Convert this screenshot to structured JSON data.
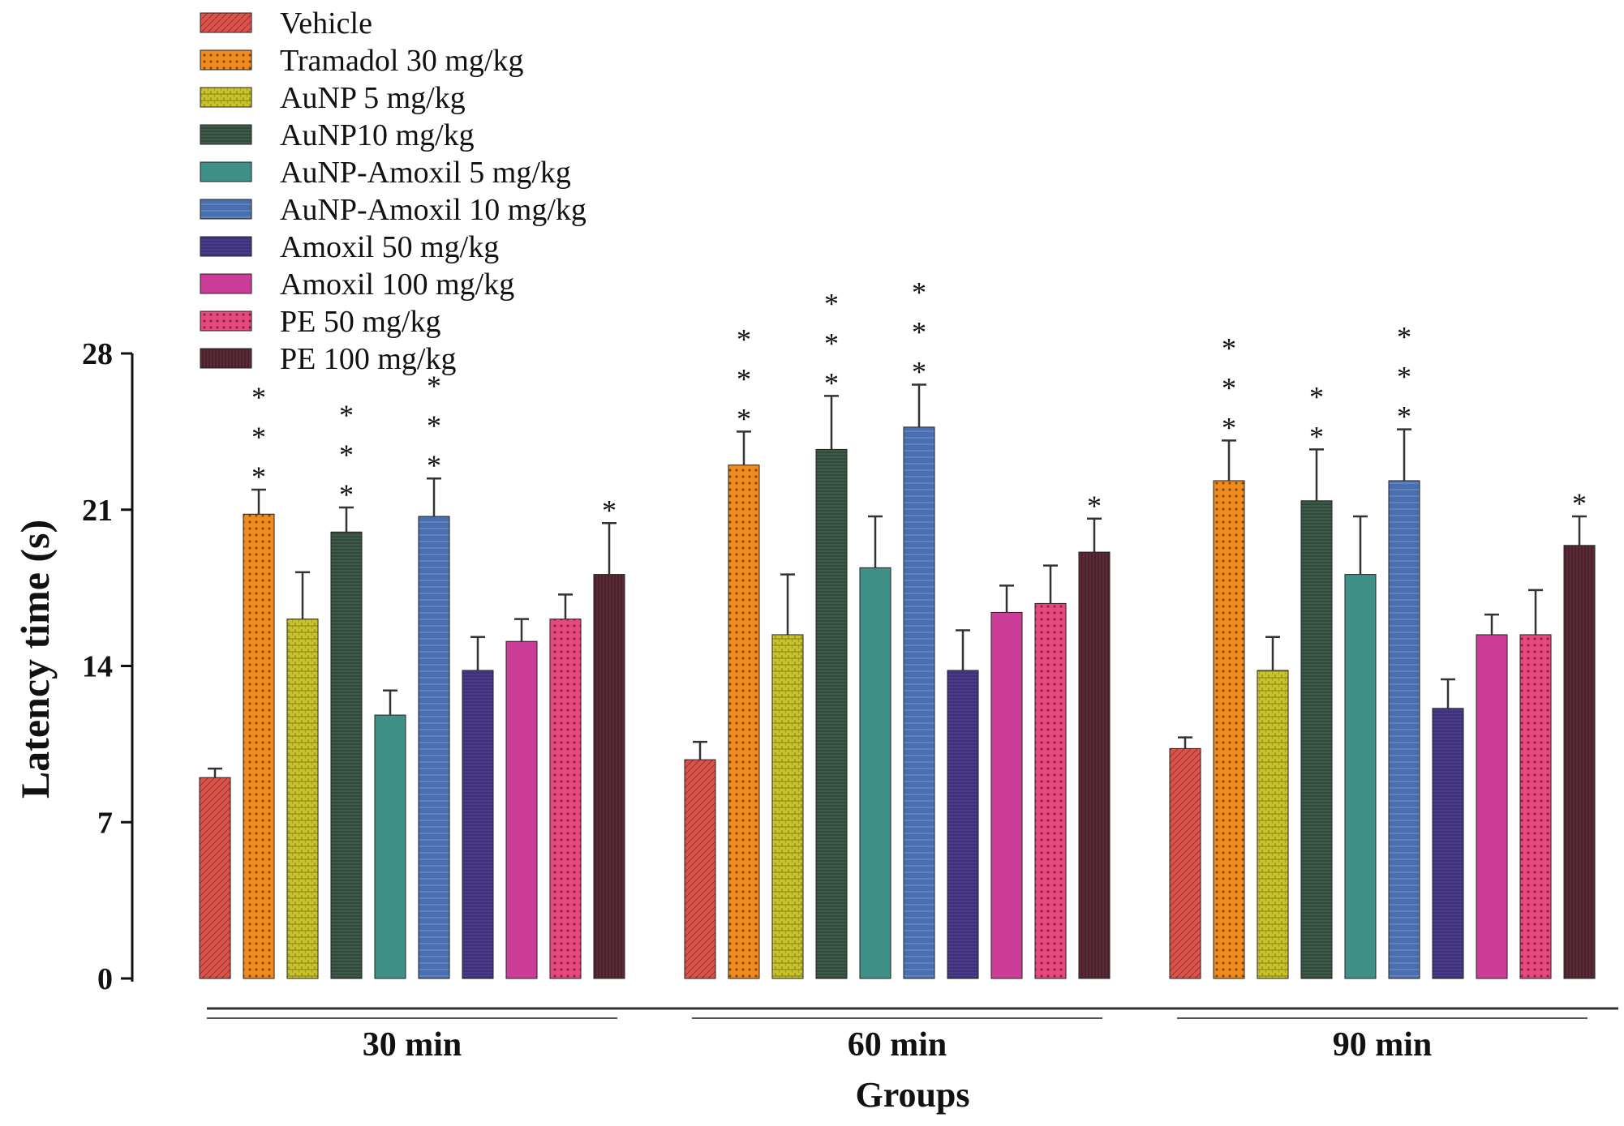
{
  "chart_data": {
    "type": "bar",
    "xlabel": "Groups",
    "ylabel": "Latency time (s)",
    "ylim": [
      0,
      28
    ],
    "yticks": [
      0,
      7,
      14,
      21,
      28
    ],
    "legend_position": "top-left",
    "grid": false,
    "significance_marker": "*",
    "categories": [
      "30 min",
      "60 min",
      "90 min"
    ],
    "series": [
      {
        "name": "Vehicle",
        "color": "#d9534a",
        "values": [
          9.0,
          9.8,
          10.3
        ],
        "errors": [
          0.4,
          0.8,
          0.5
        ],
        "stars": [
          0,
          0,
          0
        ]
      },
      {
        "name": "Tramadol 30 mg/kg",
        "color": "#f08a1c",
        "values": [
          20.8,
          23.0,
          22.3
        ],
        "errors": [
          1.1,
          1.5,
          1.8
        ],
        "stars": [
          3,
          3,
          3
        ]
      },
      {
        "name": "AuNP 5 mg/kg",
        "color": "#c9c22a",
        "values": [
          16.1,
          15.4,
          13.8
        ],
        "errors": [
          2.1,
          2.7,
          1.5
        ],
        "stars": [
          0,
          0,
          0
        ]
      },
      {
        "name": "AuNP10 mg/kg",
        "color": "#3d5a48",
        "values": [
          20.0,
          23.7,
          21.4
        ],
        "errors": [
          1.1,
          2.4,
          2.3
        ],
        "stars": [
          3,
          3,
          2
        ]
      },
      {
        "name": "AuNP-Amoxil 5 mg/kg",
        "color": "#3f9188",
        "values": [
          11.8,
          18.4,
          18.1
        ],
        "errors": [
          1.1,
          2.3,
          2.6
        ],
        "stars": [
          0,
          0,
          0
        ]
      },
      {
        "name": "AuNP-Amoxil 10 mg/kg",
        "color": "#4a6fb0",
        "values": [
          20.7,
          24.7,
          22.3
        ],
        "errors": [
          1.7,
          1.9,
          2.3
        ],
        "stars": [
          3,
          3,
          3
        ]
      },
      {
        "name": "Amoxil 50 mg/kg",
        "color": "#4a3a8c",
        "values": [
          13.8,
          13.8,
          12.1
        ],
        "errors": [
          1.5,
          1.8,
          1.3
        ],
        "stars": [
          0,
          0,
          0
        ]
      },
      {
        "name": "Amoxil 100 mg/kg",
        "color": "#cc3d97",
        "values": [
          15.1,
          16.4,
          15.4
        ],
        "errors": [
          1.0,
          1.2,
          0.9
        ],
        "stars": [
          0,
          0,
          0
        ]
      },
      {
        "name": "PE 50 mg/kg",
        "color": "#e8487e",
        "values": [
          16.1,
          16.8,
          15.4
        ],
        "errors": [
          1.1,
          1.7,
          2.0
        ],
        "stars": [
          0,
          0,
          0
        ]
      },
      {
        "name": "PE 100 mg/kg",
        "color": "#5a2a36",
        "values": [
          18.1,
          19.1,
          19.4
        ],
        "errors": [
          2.3,
          1.5,
          1.3
        ],
        "stars": [
          1,
          1,
          1
        ]
      }
    ]
  }
}
